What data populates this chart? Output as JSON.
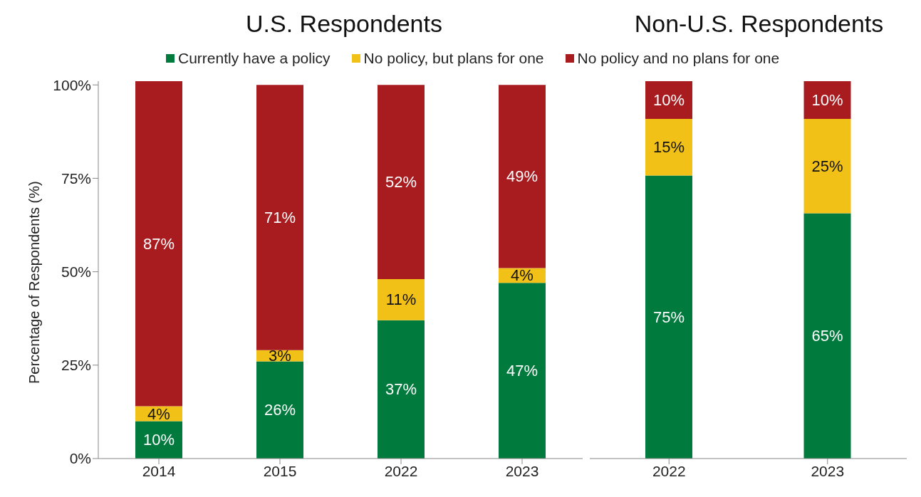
{
  "chart_data": [
    {
      "type": "bar",
      "title": "U.S. Respondents",
      "ylabel": "Percentage of Respondents (%)",
      "categories": [
        "2014",
        "2015",
        "2022",
        "2023"
      ],
      "stacked": true,
      "legend": "top",
      "ylim": [
        0,
        101
      ],
      "yticks": [
        {
          "value": 0,
          "label": "0%"
        },
        {
          "value": 25,
          "label": "25%"
        },
        {
          "value": 50,
          "label": "50%"
        },
        {
          "value": 75,
          "label": "75%"
        },
        {
          "value": 100,
          "label": "100%"
        }
      ],
      "series": [
        {
          "name": "Currently have a policy",
          "color": "#007a3d",
          "values": [
            10,
            26,
            37,
            47
          ],
          "value_labels": [
            "10%",
            "26%",
            "37%",
            "47%"
          ]
        },
        {
          "name": "No policy, but plans for one",
          "color": "#f2c118",
          "values": [
            4,
            3,
            11,
            4
          ],
          "value_labels": [
            "4%",
            "3%",
            "11%",
            "4%"
          ]
        },
        {
          "name": "No policy and no plans for one",
          "color": "#a81c20",
          "values": [
            87,
            71,
            52,
            49
          ],
          "value_labels": [
            "87%",
            "71%",
            "52%",
            "49%"
          ]
        }
      ]
    },
    {
      "type": "bar",
      "title": "Non-U.S. Respondents",
      "categories": [
        "2022",
        "2023"
      ],
      "stacked": true,
      "tick_labels": "x",
      "series": [
        {
          "color": "#007a3d",
          "values": [
            75,
            65
          ],
          "value_labels": [
            "75%",
            "65%"
          ]
        },
        {
          "color": "#f2c118",
          "values": [
            15,
            25
          ],
          "value_labels": [
            "15%",
            "25%"
          ]
        },
        {
          "color": "#a81c20",
          "values": [
            10,
            10
          ],
          "value_labels": [
            "10%",
            "10%"
          ]
        }
      ]
    }
  ]
}
